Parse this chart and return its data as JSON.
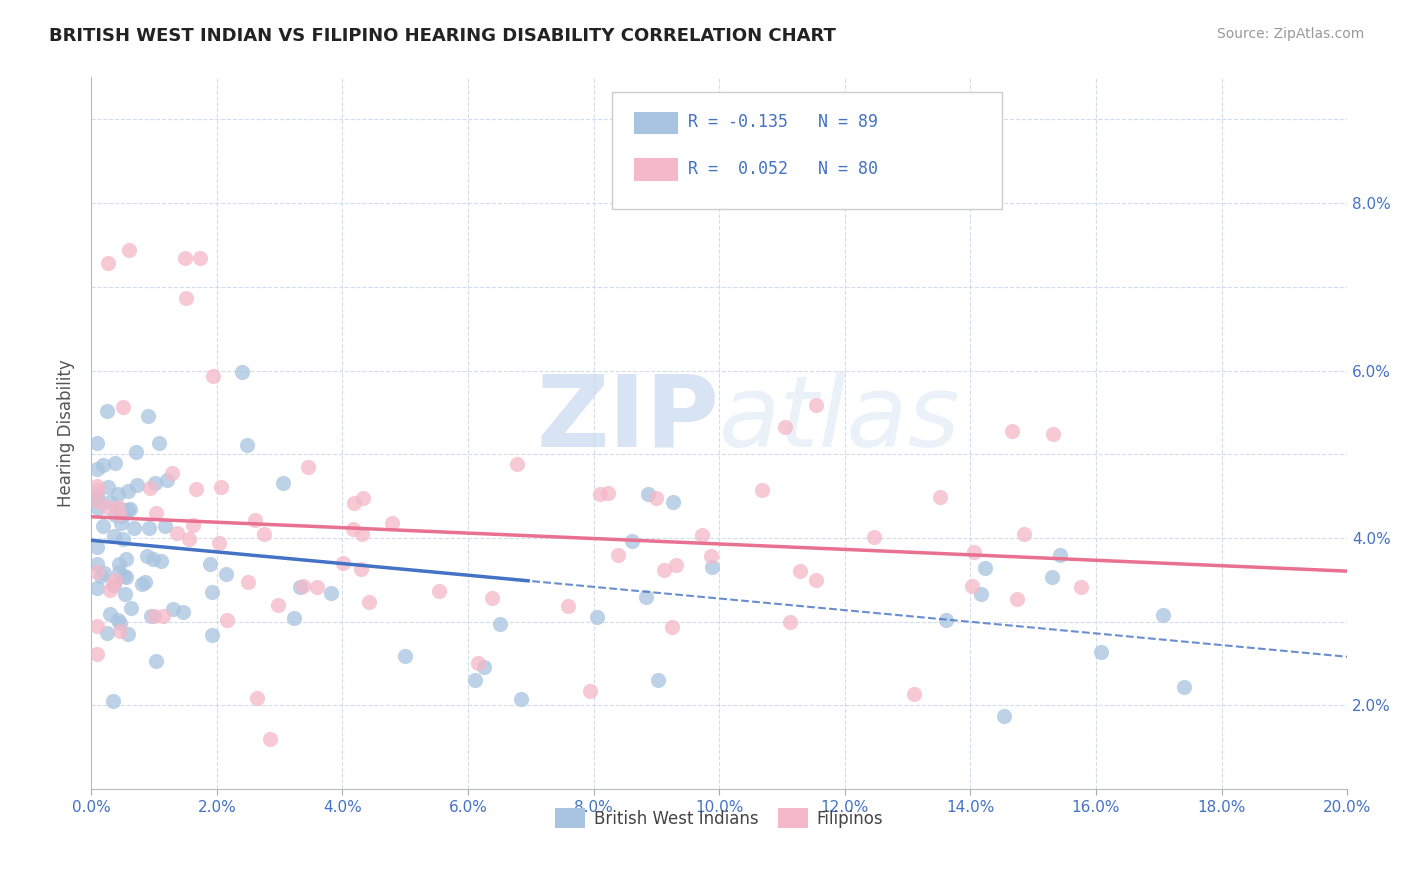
{
  "title": "BRITISH WEST INDIAN VS FILIPINO HEARING DISABILITY CORRELATION CHART",
  "source": "Source: ZipAtlas.com",
  "ylabel": "Hearing Disability",
  "xlim": [
    0.0,
    0.2
  ],
  "ylim": [
    0.0,
    0.085
  ],
  "bwi_color": "#a8c4e0",
  "fil_color": "#f4b8c8",
  "bwi_line_color": "#4472c4",
  "fil_line_color": "#e87090",
  "watermark_zip": "ZIP",
  "watermark_atlas": "atlas",
  "legend_bwi_r": "-0.135",
  "legend_bwi_n": "89",
  "legend_fil_r": "0.052",
  "legend_fil_n": "80",
  "bottom_legend_bwi": "British West Indians",
  "bottom_legend_fil": "Filipinos",
  "bwi_N": 89,
  "fil_N": 80,
  "bwi_R": -0.135,
  "fil_R": 0.052
}
